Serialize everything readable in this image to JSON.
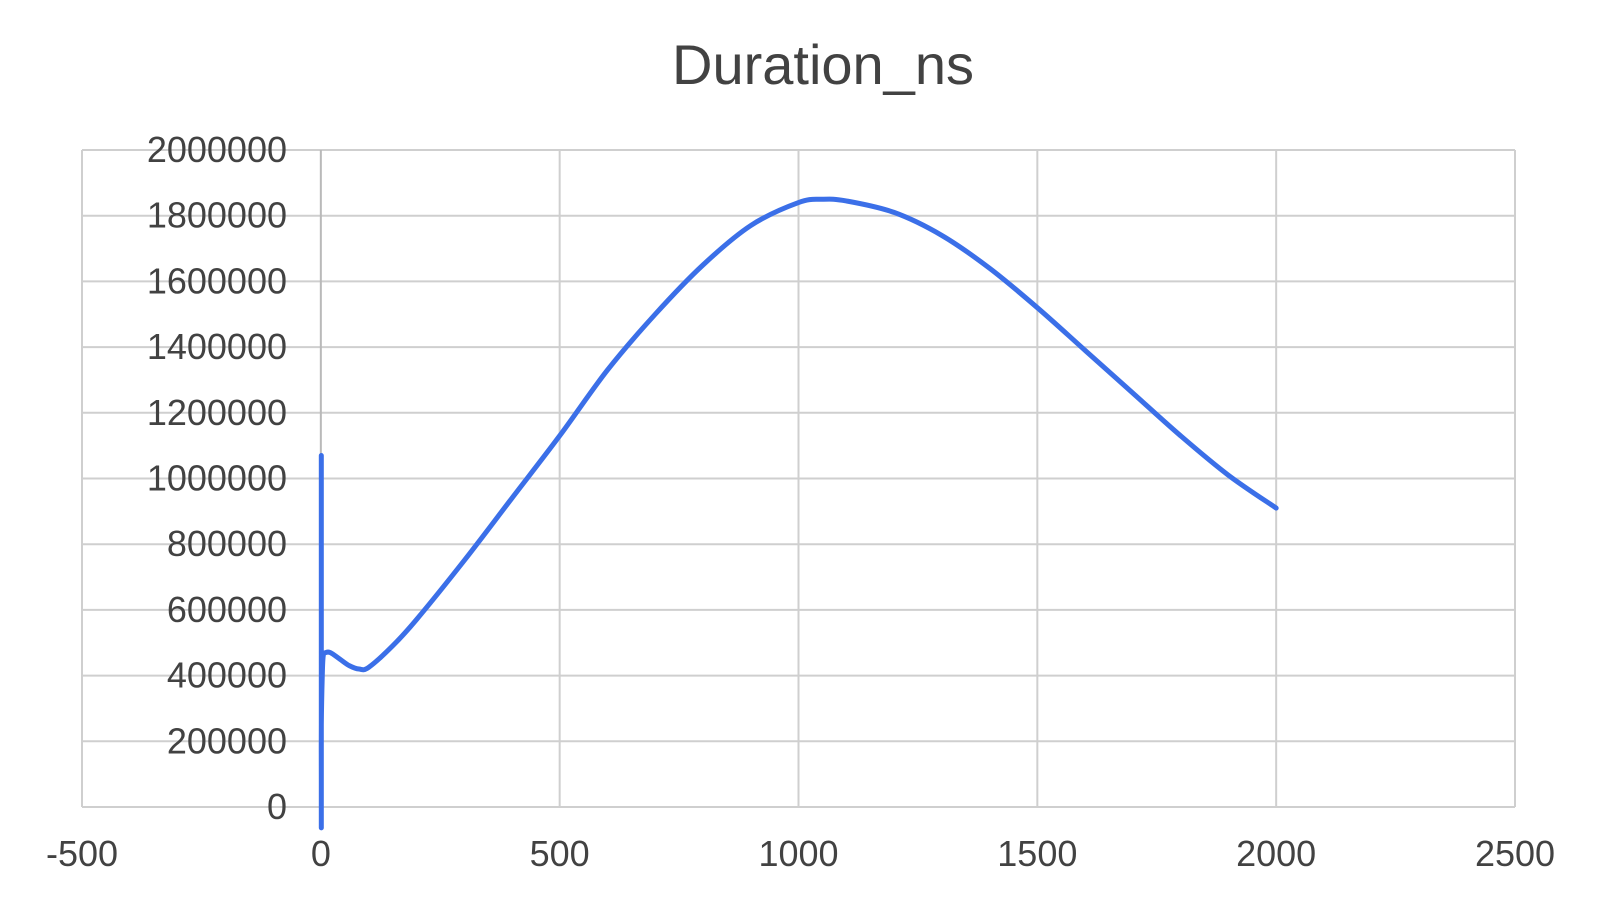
{
  "chart_data": {
    "type": "scatter",
    "mode": "smooth-line",
    "title": "Duration_ns",
    "xlabel": "",
    "ylabel": "",
    "xlim": [
      -500,
      2500
    ],
    "ylim": [
      0,
      2000000
    ],
    "x_ticks": [
      -500,
      0,
      500,
      1000,
      1500,
      2000,
      2500
    ],
    "y_ticks": [
      0,
      200000,
      400000,
      600000,
      800000,
      1000000,
      1200000,
      1400000,
      1600000,
      1800000,
      2000000
    ],
    "x_tick_labels": [
      "-500",
      "0",
      "500",
      "1000",
      "1500",
      "2000",
      "2500"
    ],
    "y_tick_labels": [
      "0",
      "200000",
      "400000",
      "600000",
      "800000",
      "1000000",
      "1200000",
      "1400000",
      "1600000",
      "1800000",
      "2000000"
    ],
    "grid": true,
    "legend": "none",
    "colors": {
      "series": "#3b6fe8",
      "grid": "#cfcfcf",
      "text": "#424242"
    },
    "series": [
      {
        "x": [
          1,
          1,
          1,
          1,
          3,
          5,
          10,
          20,
          40,
          60,
          80,
          100,
          150,
          200,
          300,
          400,
          500,
          600,
          700,
          800,
          900,
          1000,
          1050,
          1100,
          1200,
          1300,
          1400,
          1500,
          1600,
          1700,
          1800,
          1900,
          2000
        ],
        "y": [
          1070000,
          0,
          80000,
          250000,
          400000,
          460000,
          470000,
          470000,
          450000,
          430000,
          420000,
          425000,
          490000,
          570000,
          750000,
          940000,
          1130000,
          1330000,
          1500000,
          1650000,
          1770000,
          1840000,
          1850000,
          1845000,
          1810000,
          1740000,
          1640000,
          1520000,
          1390000,
          1260000,
          1130000,
          1010000,
          910000
        ]
      }
    ]
  }
}
